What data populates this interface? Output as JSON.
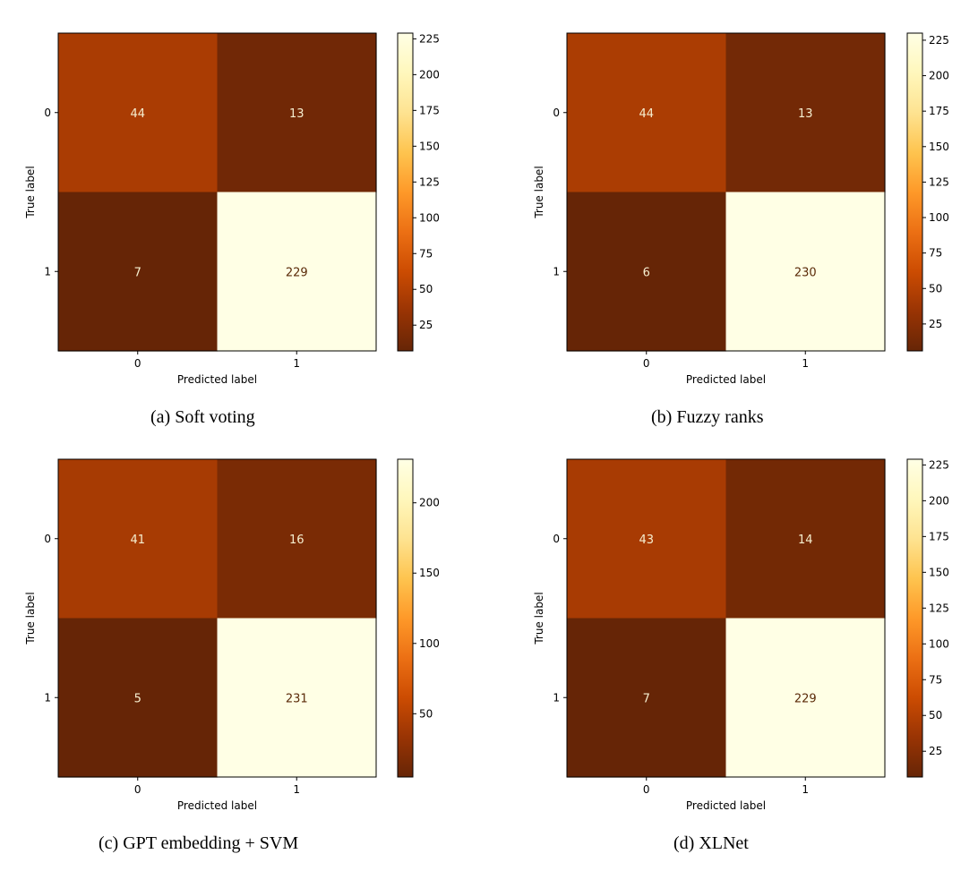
{
  "chart_data": [
    {
      "type": "heatmap",
      "caption": "(a) Soft voting",
      "xlabel": "Predicted label",
      "ylabel": "True label",
      "x_ticks": [
        "0",
        "1"
      ],
      "y_ticks": [
        "0",
        "1"
      ],
      "matrix": [
        [
          44,
          13
        ],
        [
          7,
          229
        ]
      ],
      "colormap": "YlOrBr_r",
      "colorbar_ticks": [
        25,
        50,
        75,
        100,
        125,
        150,
        175,
        200,
        225
      ]
    },
    {
      "type": "heatmap",
      "caption": "(b) Fuzzy ranks",
      "xlabel": "Predicted label",
      "ylabel": "True label",
      "x_ticks": [
        "0",
        "1"
      ],
      "y_ticks": [
        "0",
        "1"
      ],
      "matrix": [
        [
          44,
          13
        ],
        [
          6,
          230
        ]
      ],
      "colormap": "YlOrBr_r",
      "colorbar_ticks": [
        25,
        50,
        75,
        100,
        125,
        150,
        175,
        200,
        225
      ]
    },
    {
      "type": "heatmap",
      "caption": "(c) GPT embedding + SVM",
      "xlabel": "Predicted label",
      "ylabel": "True label",
      "x_ticks": [
        "0",
        "1"
      ],
      "y_ticks": [
        "0",
        "1"
      ],
      "matrix": [
        [
          41,
          16
        ],
        [
          5,
          231
        ]
      ],
      "colormap": "YlOrBr_r",
      "colorbar_ticks": [
        50,
        100,
        150,
        200
      ]
    },
    {
      "type": "heatmap",
      "caption": "(d) XLNet",
      "xlabel": "Predicted label",
      "ylabel": "True label",
      "x_ticks": [
        "0",
        "1"
      ],
      "y_ticks": [
        "0",
        "1"
      ],
      "matrix": [
        [
          43,
          14
        ],
        [
          7,
          229
        ]
      ],
      "colormap": "YlOrBr_r",
      "colorbar_ticks": [
        25,
        50,
        75,
        100,
        125,
        150,
        175,
        200,
        225
      ]
    }
  ]
}
